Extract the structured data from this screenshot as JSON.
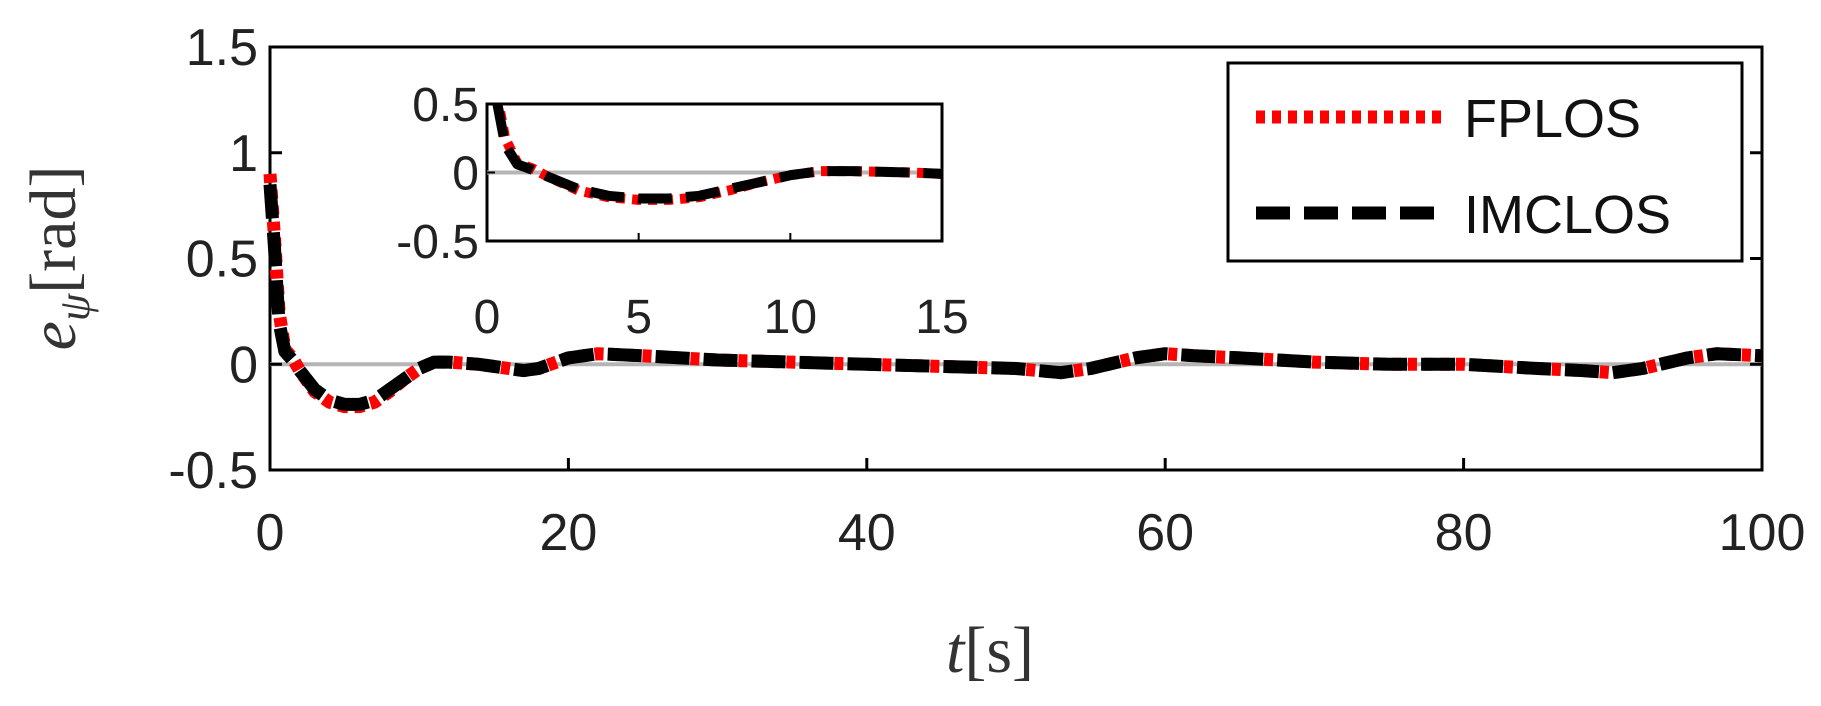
{
  "chart_data": {
    "type": "line",
    "xlabel_var": "t",
    "xlabel_unit": "[s]",
    "ylabel_var": "e",
    "ylabel_sub": "ψ",
    "ylabel_unit": "[rad]",
    "xlim": [
      0,
      100
    ],
    "ylim": [
      -0.5,
      1.5
    ],
    "xticks": [
      "0",
      "20",
      "40",
      "60",
      "80",
      "100"
    ],
    "yticks": [
      "-0.5",
      "0",
      "0.5",
      "1",
      "1.5"
    ],
    "grid": false,
    "legend_position": "top-right",
    "reference_line": 0,
    "series": [
      {
        "name": "FPLOS",
        "color": "#ff0000",
        "style": "dotted",
        "x": [
          0,
          0.3,
          0.6,
          1,
          1.5,
          2,
          3,
          4,
          5,
          6,
          7,
          8,
          9,
          10,
          11,
          12,
          14,
          16,
          17,
          18,
          20,
          22,
          25,
          30,
          35,
          40,
          45,
          50,
          53,
          55,
          58,
          60,
          62,
          65,
          70,
          75,
          80,
          85,
          88,
          90,
          92,
          95,
          97,
          100
        ],
        "y": [
          0.9,
          0.6,
          0.25,
          0.07,
          0.03,
          -0.03,
          -0.13,
          -0.18,
          -0.2,
          -0.2,
          -0.18,
          -0.13,
          -0.07,
          -0.02,
          0.01,
          0.01,
          0.0,
          -0.02,
          -0.03,
          -0.02,
          0.03,
          0.05,
          0.04,
          0.02,
          0.01,
          0.0,
          -0.01,
          -0.02,
          -0.04,
          -0.02,
          0.03,
          0.05,
          0.04,
          0.03,
          0.01,
          0.0,
          0.0,
          -0.02,
          -0.03,
          -0.04,
          -0.02,
          0.03,
          0.05,
          0.04
        ]
      },
      {
        "name": "IMCLOS",
        "color": "#000000",
        "style": "dashed",
        "x": [
          0,
          0.3,
          0.6,
          1,
          1.5,
          2,
          3,
          4,
          5,
          6,
          7,
          8,
          9,
          10,
          11,
          12,
          14,
          16,
          17,
          18,
          20,
          22,
          25,
          30,
          35,
          40,
          45,
          50,
          53,
          55,
          58,
          60,
          62,
          65,
          70,
          75,
          80,
          85,
          88,
          90,
          92,
          95,
          97,
          100
        ],
        "y": [
          0.85,
          0.55,
          0.2,
          0.06,
          0.02,
          -0.03,
          -0.12,
          -0.17,
          -0.19,
          -0.19,
          -0.17,
          -0.12,
          -0.07,
          -0.02,
          0.01,
          0.01,
          0.0,
          -0.02,
          -0.03,
          -0.02,
          0.03,
          0.05,
          0.04,
          0.02,
          0.01,
          0.0,
          -0.01,
          -0.02,
          -0.04,
          -0.02,
          0.03,
          0.05,
          0.04,
          0.03,
          0.01,
          0.0,
          0.0,
          -0.02,
          -0.03,
          -0.04,
          -0.02,
          0.03,
          0.05,
          0.04
        ]
      }
    ],
    "inset": {
      "xlim": [
        0,
        15
      ],
      "ylim": [
        -0.5,
        0.5
      ],
      "xticks": [
        "0",
        "5",
        "10",
        "15"
      ],
      "yticks": [
        "0.5",
        "0",
        "-0.5"
      ]
    }
  }
}
